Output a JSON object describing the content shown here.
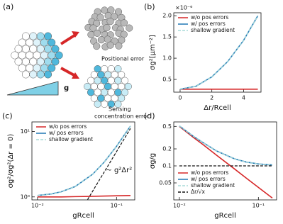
{
  "diagram": {
    "label": "(a)",
    "positional": "Positional error",
    "sensing": [
      "Sensing",
      "concentration error"
    ],
    "gradient": "g"
  },
  "chart_data": [
    {
      "type": "line",
      "panel_label": "(b)",
      "ylabel": "σg²[μm⁻²]",
      "xlabel": "Δr/Rcell",
      "y_offset_label": "×10⁻⁶",
      "xlim": [
        -0.4,
        5.1
      ],
      "ylim": [
        0.2,
        2.07
      ],
      "xticks": [
        0,
        2,
        4
      ],
      "yticks": [
        0.5,
        {
          "value": 1.0,
          "label": "1.0"
        },
        1.5,
        {
          "value": 2.0,
          "label": "2.0"
        }
      ],
      "legend": "upper left",
      "series": [
        {
          "name": "w/o pos errors",
          "color": "#d62728",
          "x": [
            0,
            1,
            2,
            3,
            4,
            4.9
          ],
          "values": [
            0.27,
            0.27,
            0.27,
            0.27,
            0.27,
            0.27
          ]
        },
        {
          "name": "w/ pos errors",
          "color": "#1f77b4",
          "x": [
            0,
            1,
            2,
            3,
            4,
            4.9
          ],
          "values": [
            0.27,
            0.34,
            0.56,
            0.92,
            1.42,
            2.0
          ]
        },
        {
          "name": "shallow gradient",
          "color": "#a8dcd9",
          "dash": true,
          "x": [
            0,
            1,
            2,
            3,
            4,
            4.9
          ],
          "values": [
            0.27,
            0.34,
            0.56,
            0.92,
            1.42,
            2.0
          ]
        }
      ]
    },
    {
      "type": "line",
      "panel_label": "(c)",
      "ylabel": "σg²/σg²(Δr = 0)",
      "xlabel": "gRcell",
      "annotation": "~ g²Δr²",
      "xscale": "log",
      "yscale": "log",
      "xlim": [
        0.0085,
        0.17
      ],
      "ylim": [
        0.9,
        14
      ],
      "xticks": [
        {
          "value": 0.01,
          "label": "10⁻²"
        },
        {
          "value": 0.1,
          "label": "10⁻¹"
        }
      ],
      "yticks": [
        {
          "value": 1,
          "label": "10⁰"
        },
        {
          "value": 10,
          "label": "10¹"
        }
      ],
      "legend": "upper left",
      "series": [
        {
          "name": "w/o pos errors",
          "color": "#d62728",
          "x": [
            0.01,
            0.015,
            0.02,
            0.03,
            0.05,
            0.07,
            0.1,
            0.15
          ],
          "values": [
            1.0,
            1.0,
            1.0,
            1.01,
            1.02,
            1.03,
            1.04,
            1.05
          ]
        },
        {
          "name": "w/ pos errors",
          "color": "#1f77b4",
          "x": [
            0.01,
            0.015,
            0.02,
            0.03,
            0.05,
            0.07,
            0.1,
            0.15
          ],
          "values": [
            1.05,
            1.11,
            1.2,
            1.44,
            2.23,
            3.42,
            5.94,
            12.1
          ]
        },
        {
          "name": "shallow gradient",
          "color": "#a8dcd9",
          "dash": true,
          "x": [
            0.01,
            0.015,
            0.02,
            0.03,
            0.05,
            0.07,
            0.1,
            0.15
          ],
          "values": [
            1.05,
            1.11,
            1.2,
            1.44,
            2.23,
            3.42,
            5.94,
            12.1
          ]
        },
        {
          "color": "#111111",
          "dash": true,
          "x": [
            0.043,
            0.15
          ],
          "values": [
            0.91,
            11.1
          ]
        }
      ]
    },
    {
      "type": "line",
      "panel_label": "(d)",
      "ylabel": "σg/g",
      "xlabel": "gRcell",
      "xscale": "log",
      "yscale": "log",
      "xlim": [
        0.0085,
        0.17
      ],
      "ylim": [
        0.025,
        0.6
      ],
      "xticks": [
        {
          "value": 0.01,
          "label": "10⁻²"
        },
        {
          "value": 0.1,
          "label": "10⁻¹"
        }
      ],
      "yticks": [
        0.05,
        0.1,
        0.2,
        0.5
      ],
      "legend": "lower left",
      "series": [
        {
          "name": "w/o pos errors",
          "color": "#d62728",
          "x": [
            0.01,
            0.015,
            0.02,
            0.03,
            0.05,
            0.07,
            0.1,
            0.15
          ],
          "values": [
            0.5,
            0.32,
            0.237,
            0.152,
            0.088,
            0.061,
            0.0416,
            0.027
          ]
        },
        {
          "name": "w/ pos errors",
          "color": "#1f77b4",
          "x": [
            0.01,
            0.015,
            0.02,
            0.03,
            0.05,
            0.07,
            0.1,
            0.15
          ],
          "values": [
            0.51,
            0.335,
            0.257,
            0.182,
            0.133,
            0.117,
            0.108,
            0.104
          ]
        },
        {
          "name": "shallow gradient",
          "color": "#a8dcd9",
          "dash": true,
          "x": [
            0.01,
            0.015,
            0.02,
            0.03,
            0.05,
            0.07,
            0.1,
            0.15
          ],
          "values": [
            0.51,
            0.335,
            0.257,
            0.182,
            0.133,
            0.117,
            0.108,
            0.104
          ]
        },
        {
          "name": "Δr/√x",
          "color": "#111111",
          "dash": true,
          "x": [
            0.01,
            0.15
          ],
          "values": [
            0.1,
            0.1
          ]
        }
      ]
    }
  ]
}
